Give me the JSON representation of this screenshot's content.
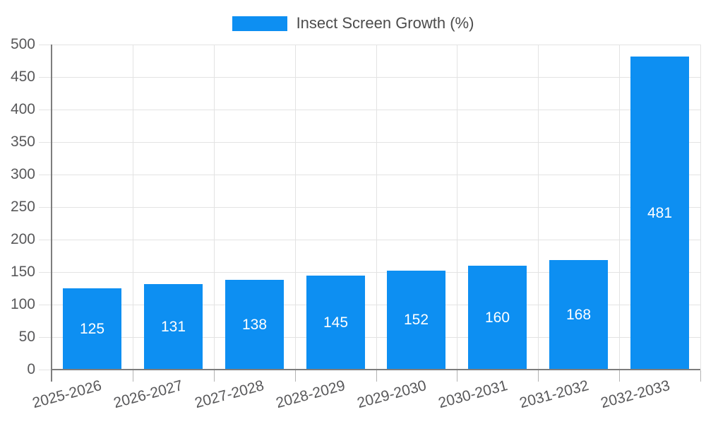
{
  "chart_data": {
    "type": "bar",
    "title": "Insect Screen Growth (%)",
    "legend": {
      "label": "Insect Screen Growth (%)",
      "position": "top-center"
    },
    "categories": [
      "2025-2026",
      "2026-2027",
      "2027-2028",
      "2028-2029",
      "2029-2030",
      "2030-2031",
      "2031-2032",
      "2032-2033"
    ],
    "series": [
      {
        "name": "Insect Screen Growth (%)",
        "values": [
          125,
          131,
          138,
          145,
          152,
          160,
          168,
          481
        ]
      }
    ],
    "value_labels_shown": true,
    "xlabel": "",
    "ylabel": "",
    "ylim": [
      0,
      500
    ],
    "yticks": [
      0,
      50,
      100,
      150,
      200,
      250,
      300,
      350,
      400,
      450,
      500
    ],
    "grid": true,
    "colors": {
      "bar": "#0d8ff2",
      "value_label": "#ffffff",
      "axis_line": "#7d7d7d",
      "gridline": "#e3e3e3",
      "x_tick_mark": "#b3b3b3",
      "axis_label_text": "#58585a",
      "legend_text": "#4c4c4c",
      "background": "#ffffff"
    }
  }
}
